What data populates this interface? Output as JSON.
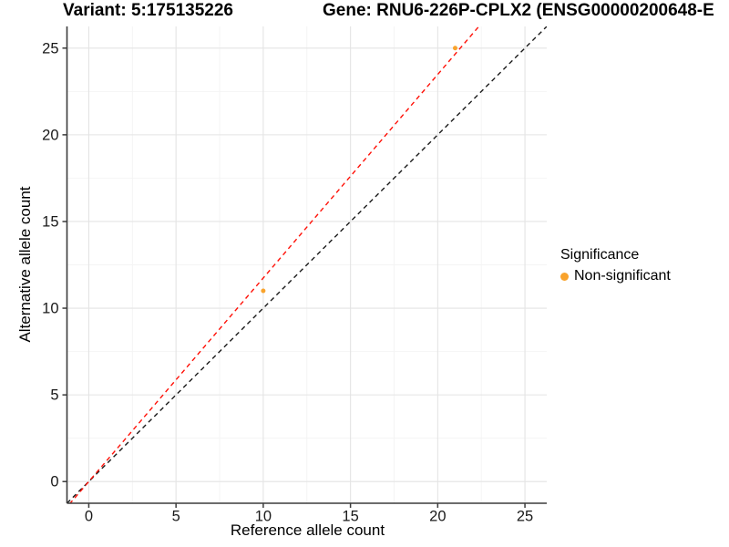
{
  "chart_data": {
    "type": "scatter",
    "title": "Variant: 5:175135226",
    "title_right": "Gene: RNU6-226P-CPLX2 (ENSG00000200648-E",
    "xlabel": "Reference allele count",
    "ylabel": "Alternative allele count",
    "xlim": [
      -1.25,
      26.25
    ],
    "ylim": [
      -1.25,
      26.25
    ],
    "xticks": [
      0,
      5,
      10,
      15,
      20,
      25
    ],
    "yticks": [
      0,
      5,
      10,
      15,
      20,
      25
    ],
    "minor_ticks_x": [
      2.5,
      7.5,
      12.5,
      17.5,
      22.5
    ],
    "minor_ticks_y": [
      2.5,
      7.5,
      12.5,
      17.5,
      22.5
    ],
    "grid": true,
    "legend_position": "right",
    "legend": {
      "title": "Significance",
      "items": [
        {
          "label": "Non-significant",
          "color": "#F9A32C"
        }
      ]
    },
    "series": [
      {
        "name": "Non-significant",
        "color": "#F9A32C",
        "marker": "circle",
        "points": [
          {
            "x": 10,
            "y": 11
          },
          {
            "x": 21,
            "y": 25
          }
        ]
      }
    ],
    "reference_lines": [
      {
        "name": "identity-line",
        "slope": 1,
        "intercept": 0,
        "color": "#1A1A1A",
        "style": "dashed"
      },
      {
        "name": "fit-line",
        "slope": 1.174,
        "intercept": 0,
        "color": "#FF1007",
        "style": "dashed"
      }
    ]
  },
  "colors": {
    "grid_major": "#E4E4E4",
    "grid_minor": "#F4F4F4",
    "axis": "#3C3C3C",
    "tick_text": "#1A1A1A",
    "background": "#FFFFFF"
  }
}
